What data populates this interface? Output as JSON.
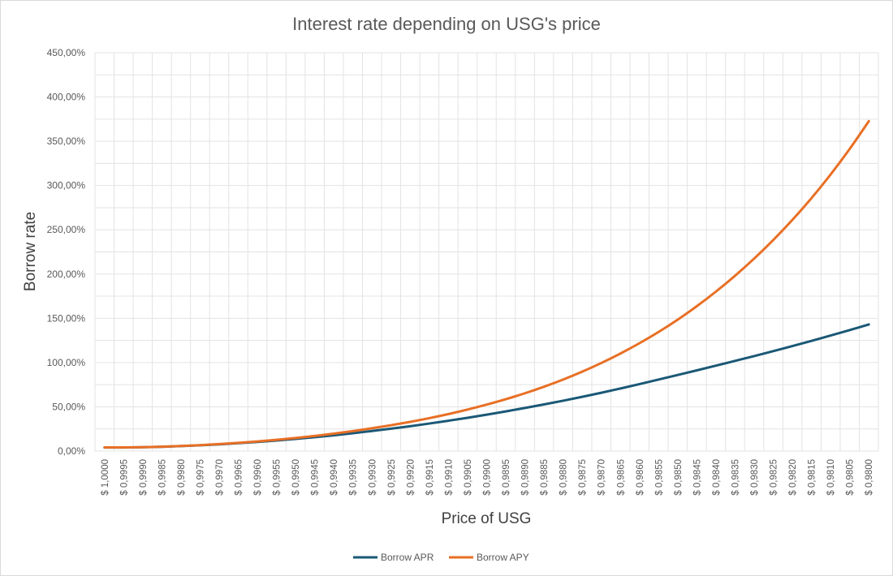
{
  "chart_data": {
    "type": "line",
    "title": "Interest rate depending on USG's price",
    "xlabel": "Price of USG",
    "ylabel": "Borrow rate",
    "ylim": [
      0,
      450
    ],
    "yticks": [
      0,
      50,
      100,
      150,
      200,
      250,
      300,
      350,
      400,
      450
    ],
    "ytick_labels": [
      "0,00%",
      "50,00%",
      "100,00%",
      "150,00%",
      "200,00%",
      "250,00%",
      "300,00%",
      "350,00%",
      "400,00%",
      "450,00%"
    ],
    "grid": true,
    "legend_position": "bottom",
    "categories": [
      "$ 1,0000",
      "$ 0,9995",
      "$ 0,9990",
      "$ 0,9985",
      "$ 0,9980",
      "$ 0,9975",
      "$ 0,9970",
      "$ 0,9965",
      "$ 0,9960",
      "$ 0,9955",
      "$ 0,9950",
      "$ 0,9945",
      "$ 0,9940",
      "$ 0,9935",
      "$ 0,9930",
      "$ 0,9925",
      "$ 0,9920",
      "$ 0,9915",
      "$ 0,9910",
      "$ 0,9905",
      "$ 0,9900",
      "$ 0,9895",
      "$ 0,9890",
      "$ 0,9885",
      "$ 0,9880",
      "$ 0,9875",
      "$ 0,9870",
      "$ 0,9865",
      "$ 0,9860",
      "$ 0,9855",
      "$ 0,9850",
      "$ 0,9845",
      "$ 0,9840",
      "$ 0,9835",
      "$ 0,9830",
      "$ 0,9825",
      "$ 0,9820",
      "$ 0,9815",
      "$ 0,9810",
      "$ 0,9805",
      "$ 0,9800"
    ],
    "series": [
      {
        "name": "Borrow APR",
        "color": "#1a5876",
        "values": [
          4.0,
          4.0,
          4.3,
          4.8,
          5.6,
          6.5,
          7.6,
          8.9,
          10.3,
          11.9,
          13.7,
          15.7,
          17.8,
          20.1,
          22.7,
          25.3,
          28.1,
          31.1,
          34.3,
          37.6,
          41.1,
          44.8,
          48.7,
          52.7,
          56.9,
          61.3,
          65.9,
          70.7,
          75.7,
          80.8,
          86.0,
          91.2,
          96.5,
          101.9,
          107.3,
          112.9,
          118.6,
          124.5,
          130.5,
          136.7,
          143.0
        ]
      },
      {
        "name": "Borrow APY",
        "color": "#e86f25",
        "values": [
          4.1,
          4.1,
          4.4,
          4.9,
          5.7,
          6.7,
          7.9,
          9.3,
          10.9,
          12.7,
          14.8,
          17.1,
          19.7,
          22.6,
          25.8,
          29.2,
          33.0,
          37.2,
          41.8,
          46.9,
          52.5,
          58.6,
          65.3,
          72.7,
          80.8,
          89.7,
          99.5,
          110.2,
          121.9,
          134.6,
          148.5,
          163.7,
          180.2,
          198.1,
          217.5,
          238.5,
          261.2,
          285.8,
          312.5,
          341.4,
          372.7
        ]
      }
    ]
  }
}
